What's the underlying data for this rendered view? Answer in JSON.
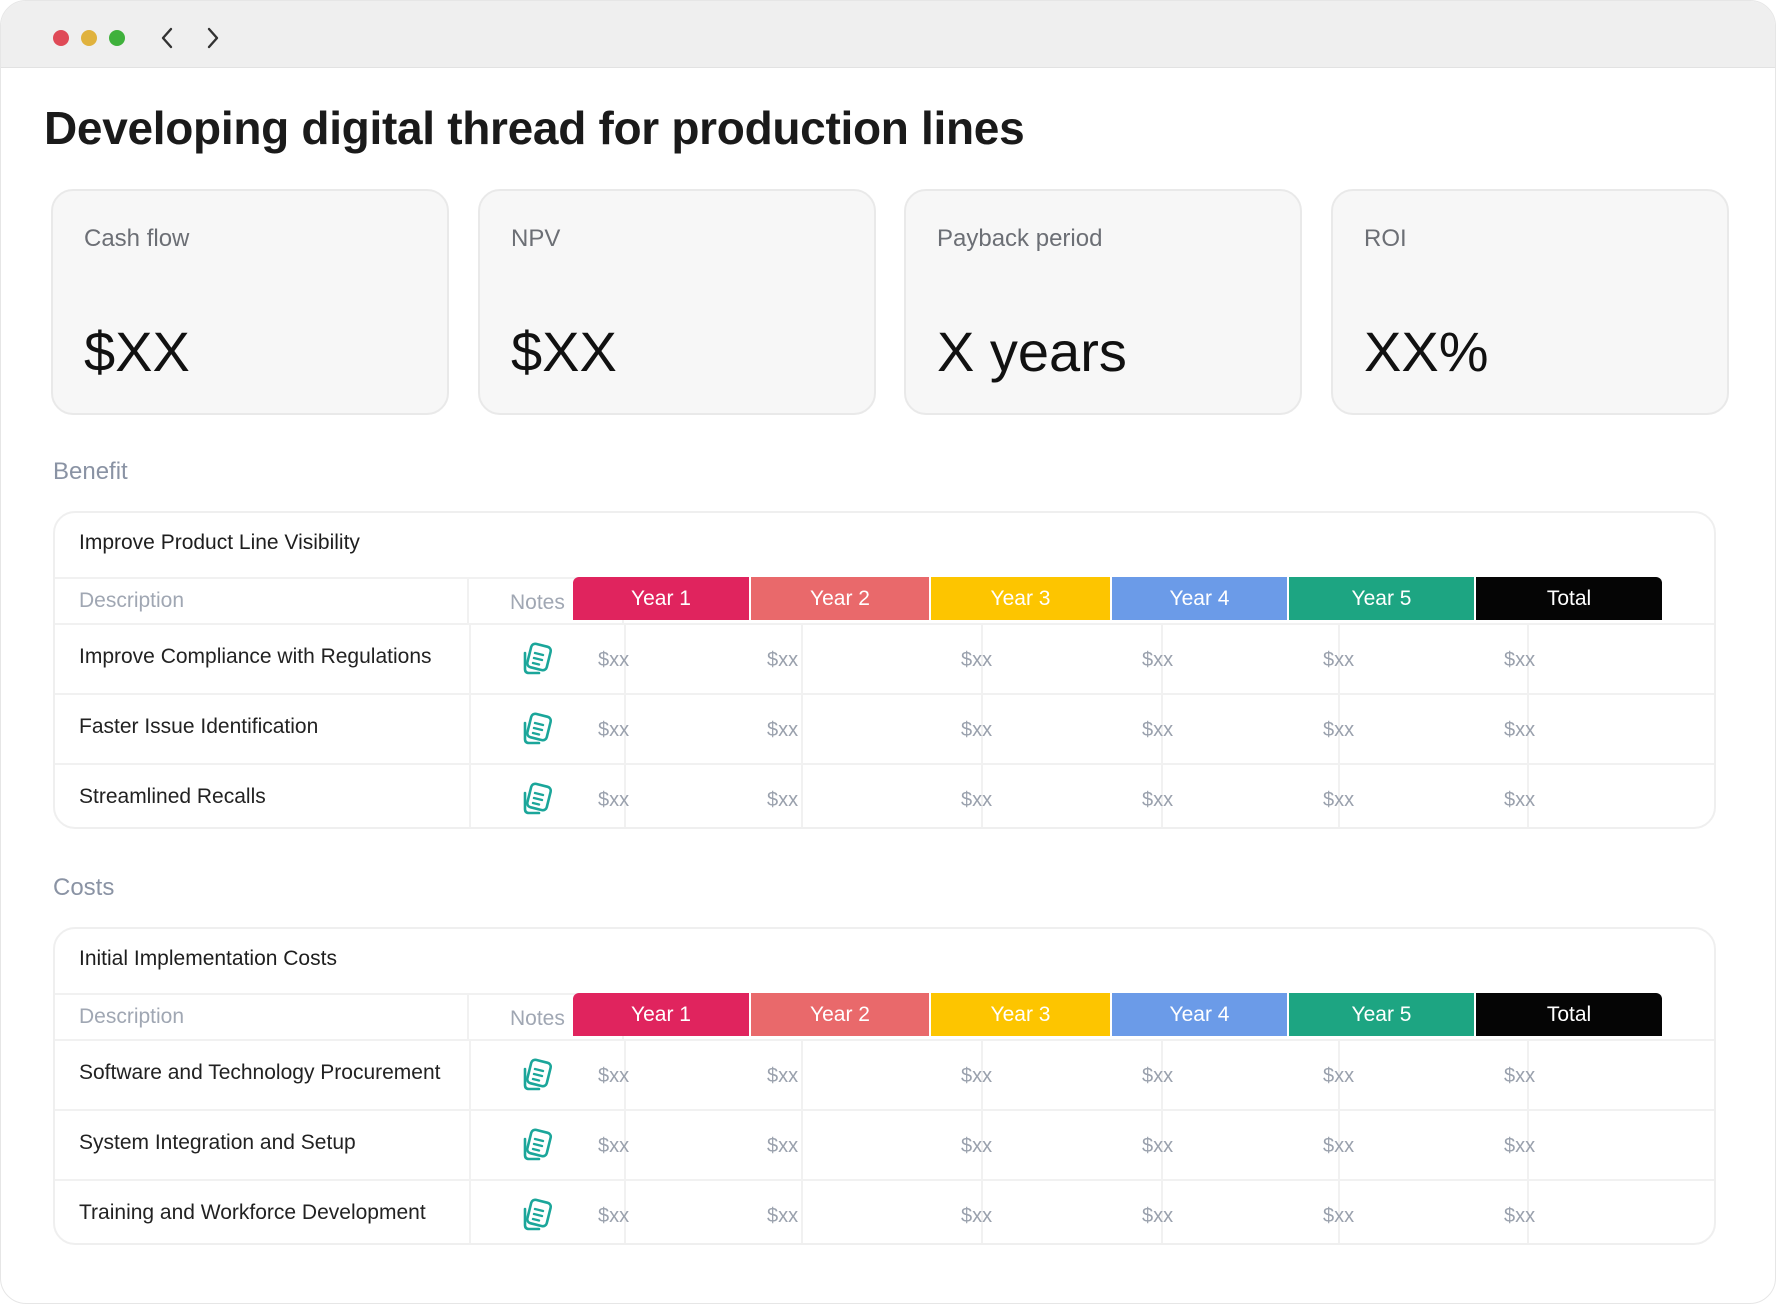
{
  "window": {
    "controls": [
      "close",
      "minimize",
      "maximize"
    ],
    "nav": {
      "back_icon": "chevron-left-icon",
      "forward_icon": "chevron-right-icon"
    }
  },
  "page_title": "Developing digital thread for production lines",
  "kpis": [
    {
      "label": "Cash flow",
      "value": "$XX"
    },
    {
      "label": "NPV",
      "value": "$XX"
    },
    {
      "label": "Payback period",
      "value": "X years"
    },
    {
      "label": "ROI",
      "value": "XX%"
    }
  ],
  "columns": {
    "description": "Description",
    "notes": "Notes",
    "years": [
      {
        "label": "Year 1",
        "color": "#e0245e"
      },
      {
        "label": "Year 2",
        "color": "#e9696b"
      },
      {
        "label": "Year 3",
        "color": "#fdc500"
      },
      {
        "label": "Year 4",
        "color": "#6b9be8"
      },
      {
        "label": "Year 5",
        "color": "#1da582"
      },
      {
        "label": "Total",
        "color": "#050505"
      }
    ]
  },
  "notes_icon": {
    "name": "notes-icon",
    "color": "#1ba69a"
  },
  "sections": [
    {
      "label": "Benefit",
      "card_title": "Improve Product Line Visibility",
      "rows": [
        {
          "description": "Improve Compliance with Regulations",
          "values": [
            "$xx",
            "$xx",
            "$xx",
            "$xx",
            "$xx",
            "$xx"
          ]
        },
        {
          "description": "Faster Issue Identification",
          "values": [
            "$xx",
            "$xx",
            "$xx",
            "$xx",
            "$xx",
            "$xx"
          ]
        },
        {
          "description": "Streamlined Recalls",
          "values": [
            "$xx",
            "$xx",
            "$xx",
            "$xx",
            "$xx",
            "$xx"
          ]
        }
      ]
    },
    {
      "label": "Costs",
      "card_title": "Initial Implementation Costs",
      "rows": [
        {
          "description": "Software and Technology Procurement",
          "values": [
            "$xx",
            "$xx",
            "$xx",
            "$xx",
            "$xx",
            "$xx"
          ]
        },
        {
          "description": "System Integration and Setup",
          "values": [
            "$xx",
            "$xx",
            "$xx",
            "$xx",
            "$xx",
            "$xx"
          ]
        },
        {
          "description": "Training and Workforce Development",
          "values": [
            "$xx",
            "$xx",
            "$xx",
            "$xx",
            "$xx",
            "$xx"
          ]
        }
      ]
    }
  ]
}
